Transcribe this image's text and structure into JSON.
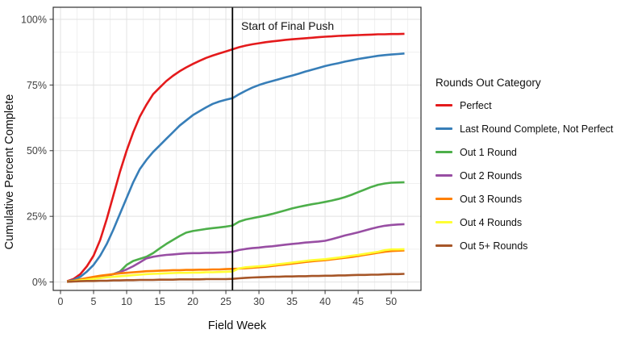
{
  "chart_data": {
    "type": "line",
    "title": "",
    "xlabel": "Field Week",
    "ylabel": "Cumulative Percent Complete",
    "legend_title": "Rounds Out Category",
    "legend_position": "right",
    "grid": "major and minor, light gray on white panel with dark border",
    "x_tick_labels": [
      "0",
      "5",
      "10",
      "15",
      "20",
      "25",
      "30",
      "35",
      "40",
      "45",
      "50"
    ],
    "x_major_ticks": [
      0,
      5,
      10,
      15,
      20,
      25,
      30,
      35,
      40,
      45,
      50
    ],
    "x_minor_step": 2.5,
    "y_tick_labels": [
      "0%",
      "25%",
      "50%",
      "75%",
      "100%"
    ],
    "y_major_ticks": [
      0,
      25,
      50,
      75,
      100
    ],
    "y_minor_step": 12.5,
    "xlim": [
      -1.1,
      54.5
    ],
    "ylim": [
      -3.2,
      104.6
    ],
    "vline": {
      "x_week": 26,
      "color": "#000000"
    },
    "annotation": {
      "text": "Start of Final Push",
      "x_week": 27,
      "y_percent": 97,
      "align": "left"
    },
    "x": [
      1,
      2,
      3,
      4,
      5,
      6,
      7,
      8,
      9,
      10,
      11,
      12,
      13,
      14,
      15,
      16,
      17,
      18,
      19,
      20,
      21,
      22,
      23,
      24,
      25,
      26,
      27,
      28,
      29,
      30,
      31,
      32,
      33,
      34,
      35,
      36,
      37,
      38,
      39,
      40,
      41,
      42,
      43,
      44,
      45,
      46,
      47,
      48,
      49,
      50,
      51,
      52
    ],
    "series": [
      {
        "name": "Perfect",
        "color": "#E41A1C",
        "values": [
          0.3,
          1.2,
          3,
          6,
          10,
          16,
          24,
          33,
          42,
          50,
          57,
          63,
          67.5,
          71.5,
          74,
          76.5,
          78.5,
          80.2,
          81.7,
          83,
          84.2,
          85.3,
          86.2,
          87,
          87.8,
          88.6,
          89.4,
          90,
          90.5,
          90.9,
          91.3,
          91.6,
          91.9,
          92.2,
          92.4,
          92.6,
          92.8,
          93,
          93.2,
          93.4,
          93.5,
          93.7,
          93.8,
          93.9,
          94,
          94.1,
          94.2,
          94.3,
          94.3,
          94.4,
          94.4,
          94.5
        ]
      },
      {
        "name": "Last Round Complete, Not Perfect",
        "color": "#377EB8",
        "values": [
          0.2,
          0.8,
          2,
          4,
          6.5,
          10,
          14.5,
          20,
          26,
          32,
          38,
          43,
          46.5,
          49.5,
          52,
          54.5,
          57,
          59.5,
          61.5,
          63.5,
          65,
          66.5,
          67.8,
          68.7,
          69.4,
          70,
          71.5,
          72.8,
          74,
          75,
          75.8,
          76.5,
          77.2,
          77.9,
          78.6,
          79.3,
          80.1,
          80.8,
          81.5,
          82.2,
          82.8,
          83.3,
          83.9,
          84.4,
          84.9,
          85.3,
          85.7,
          86.1,
          86.4,
          86.6,
          86.8,
          87
        ]
      },
      {
        "name": "Out 1 Round",
        "color": "#4DAF4A",
        "values": [
          0.2,
          0.5,
          1,
          1.3,
          1.6,
          2,
          2.4,
          3,
          4,
          6.5,
          8,
          8.8,
          9.6,
          11,
          12.8,
          14.5,
          16,
          17.5,
          18.8,
          19.4,
          19.8,
          20.2,
          20.5,
          20.8,
          21.1,
          21.5,
          23,
          23.8,
          24.3,
          24.8,
          25.3,
          25.9,
          26.6,
          27.3,
          28,
          28.6,
          29.1,
          29.6,
          30,
          30.5,
          31,
          31.6,
          32.3,
          33.2,
          34.2,
          35.2,
          36.2,
          37,
          37.5,
          37.8,
          37.9,
          38
        ]
      },
      {
        "name": "Out 2 Rounds",
        "color": "#984EA3",
        "values": [
          0.1,
          0.3,
          0.6,
          0.9,
          1.2,
          1.6,
          2.2,
          3,
          3.8,
          4.8,
          6,
          7.5,
          9,
          9.6,
          10,
          10.3,
          10.5,
          10.7,
          10.9,
          11,
          11,
          11.1,
          11.1,
          11.2,
          11.3,
          11.5,
          12.2,
          12.6,
          12.9,
          13.1,
          13.4,
          13.6,
          13.9,
          14.2,
          14.5,
          14.7,
          15,
          15.2,
          15.4,
          15.7,
          16.3,
          17,
          17.7,
          18.3,
          18.9,
          19.6,
          20.3,
          20.9,
          21.4,
          21.7,
          21.9,
          22
        ]
      },
      {
        "name": "Out 3 Rounds",
        "color": "#FF7F00",
        "values": [
          0.2,
          0.5,
          1,
          1.5,
          2,
          2.4,
          2.7,
          3,
          3.3,
          3.5,
          3.7,
          3.9,
          4.1,
          4.2,
          4.3,
          4.4,
          4.5,
          4.5,
          4.6,
          4.6,
          4.7,
          4.7,
          4.8,
          4.8,
          4.9,
          5,
          5.1,
          5.2,
          5.4,
          5.6,
          5.8,
          6.1,
          6.4,
          6.7,
          7,
          7.3,
          7.6,
          7.9,
          8.1,
          8.3,
          8.6,
          8.9,
          9.2,
          9.5,
          9.9,
          10.3,
          10.7,
          11.1,
          11.5,
          11.8,
          11.9,
          12
        ]
      },
      {
        "name": "Out 4 Rounds",
        "color": "#FFFF33",
        "values": [
          0.1,
          0.3,
          0.6,
          0.9,
          1.2,
          1.5,
          1.8,
          2,
          2.2,
          2.4,
          2.6,
          2.8,
          3,
          3.1,
          3.2,
          3.3,
          3.4,
          3.5,
          3.5,
          3.6,
          3.6,
          3.7,
          3.7,
          3.8,
          3.9,
          4,
          5.2,
          5.6,
          5.8,
          6,
          6.2,
          6.5,
          6.8,
          7.1,
          7.4,
          7.7,
          8,
          8.3,
          8.5,
          8.7,
          9,
          9.3,
          9.6,
          10,
          10.3,
          10.7,
          11.1,
          11.5,
          12.1,
          12.4,
          12.4,
          12.5
        ]
      },
      {
        "name": "Out 5+ Rounds",
        "color": "#A65628",
        "values": [
          0.1,
          0.2,
          0.3,
          0.4,
          0.4,
          0.5,
          0.5,
          0.6,
          0.6,
          0.7,
          0.7,
          0.8,
          0.8,
          0.8,
          0.9,
          0.9,
          0.9,
          1,
          1,
          1,
          1,
          1.1,
          1.1,
          1.1,
          1.1,
          1.2,
          1.4,
          1.6,
          1.7,
          1.8,
          1.9,
          2,
          2,
          2.1,
          2.1,
          2.2,
          2.2,
          2.3,
          2.3,
          2.4,
          2.4,
          2.5,
          2.5,
          2.6,
          2.7,
          2.7,
          2.8,
          2.8,
          2.9,
          3,
          3,
          3.1
        ]
      }
    ],
    "style": {
      "panel_border": "#2f2f2f",
      "grid_major": "#e2e2e2",
      "grid_minor": "#f0f0f0",
      "tick_color": "#333333",
      "tick_label_color": "#404040",
      "line_width": 2.6
    }
  }
}
